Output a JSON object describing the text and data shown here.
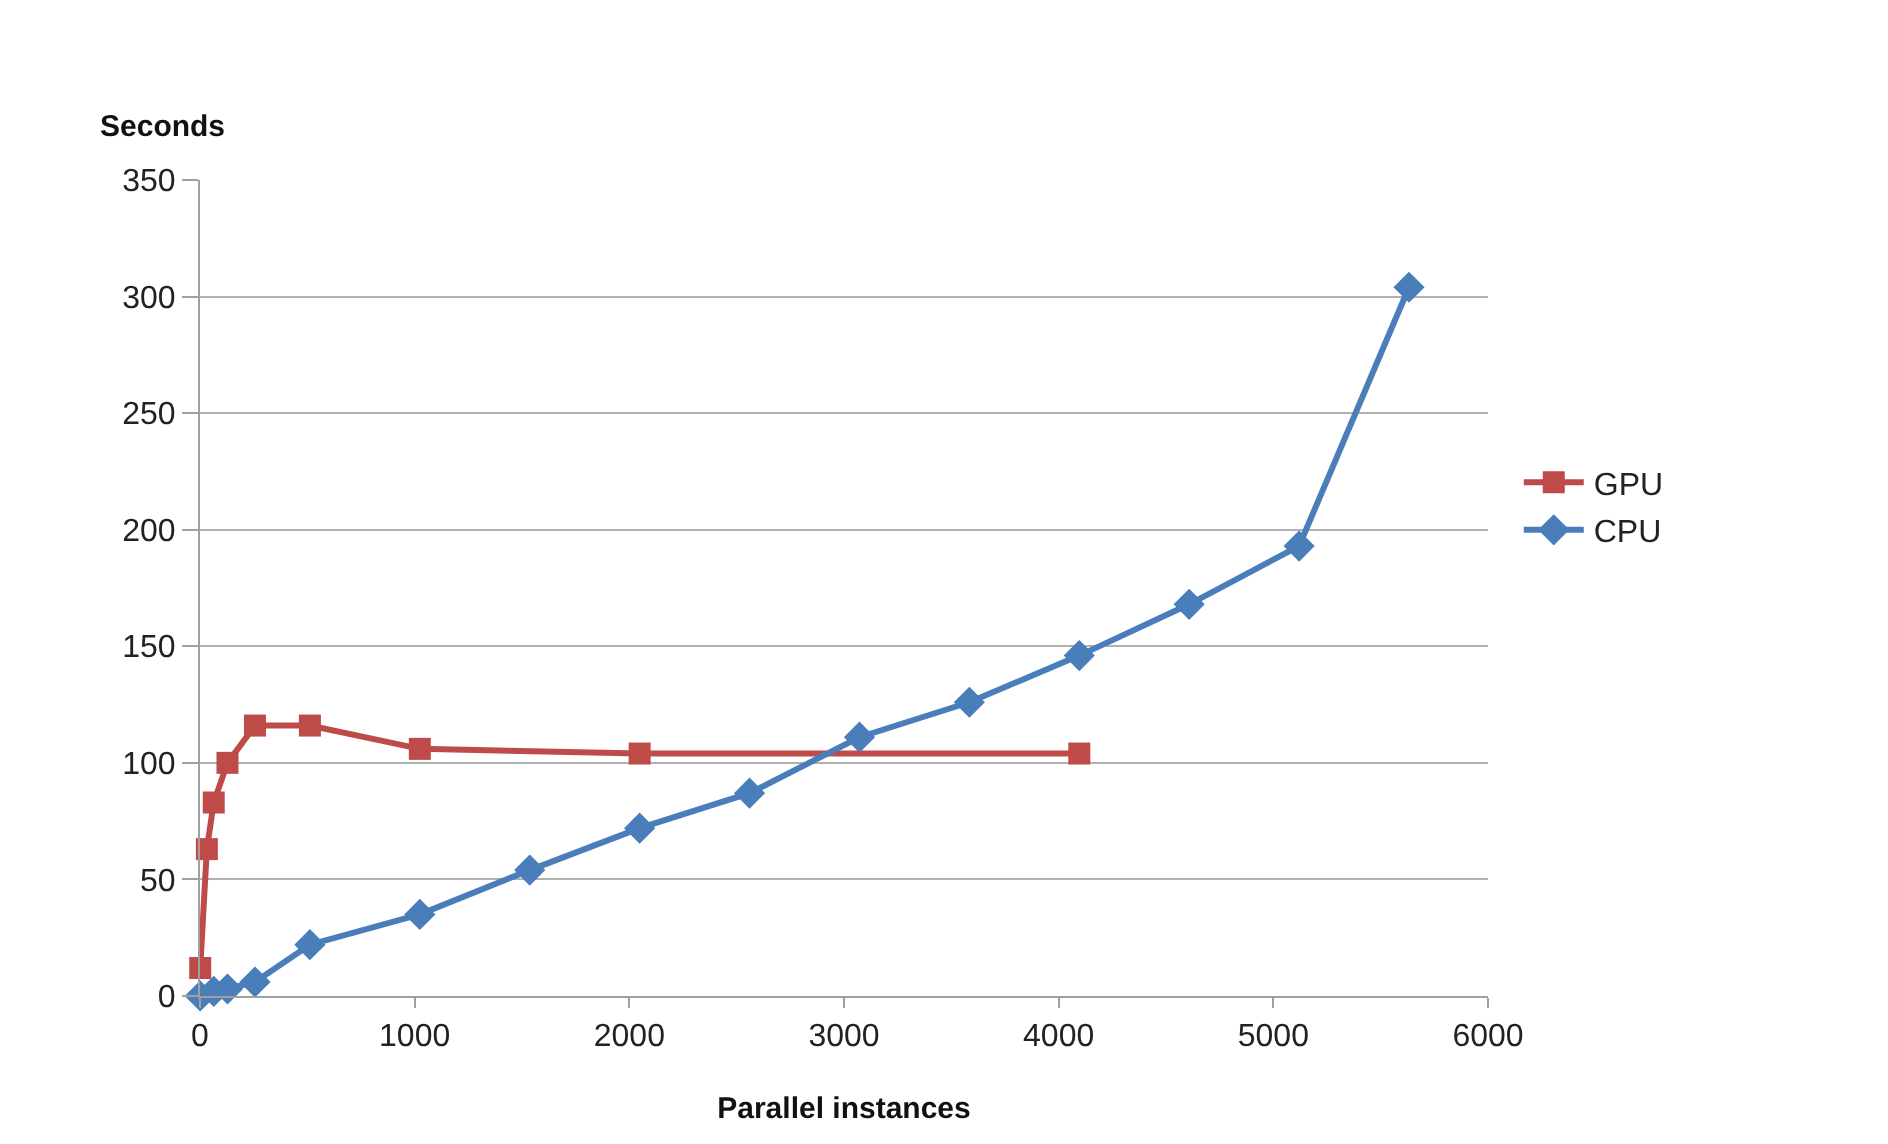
{
  "chart_data": {
    "type": "line",
    "xlabel": "Parallel instances",
    "ylabel": "Seconds",
    "xlim": [
      0,
      6000
    ],
    "xticks": [
      0,
      1000,
      2000,
      3000,
      4000,
      5000,
      6000
    ],
    "ylim": [
      0,
      350
    ],
    "yticks": [
      0,
      50,
      100,
      150,
      200,
      250,
      300,
      350
    ],
    "grid": "y",
    "legend": "right",
    "series": [
      {
        "name": "GPU",
        "color": "#be4b48",
        "marker": "square",
        "x": [
          1,
          32,
          64,
          128,
          256,
          512,
          1024,
          2048,
          4096
        ],
        "values": [
          12,
          63,
          83,
          100,
          116,
          116,
          106,
          104,
          104
        ]
      },
      {
        "name": "CPU",
        "color": "#4a7ebb",
        "marker": "diamond",
        "x": [
          1,
          64,
          128,
          256,
          512,
          1024,
          1536,
          2048,
          2560,
          3072,
          3584,
          4096,
          4608,
          5120,
          5632
        ],
        "values": [
          0,
          2,
          3,
          6,
          22,
          35,
          54,
          72,
          87,
          111,
          126,
          146,
          168,
          193,
          304
        ]
      }
    ]
  }
}
